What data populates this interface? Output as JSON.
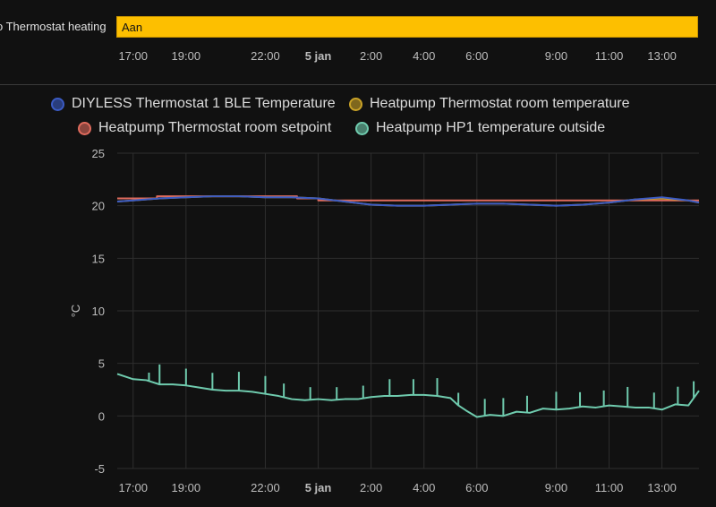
{
  "timeline": {
    "entity_label": "o Thermostat heating",
    "state_label": "Aan",
    "state_color": "#fdbf00",
    "x_ticks": [
      "17:00",
      "19:00",
      "22:00",
      "5 jan",
      "2:00",
      "4:00",
      "6:00",
      "9:00",
      "11:00",
      "13:00"
    ]
  },
  "legend": [
    {
      "name": "DIYLESS Thermostat 1 BLE Temperature",
      "color": "#3b5bc4"
    },
    {
      "name": "Heatpump Thermostat room temperature",
      "color": "#c9a227"
    },
    {
      "name": "Heatpump Thermostat room setpoint",
      "color": "#e06b5d"
    },
    {
      "name": "Heatpump HP1 temperature outside",
      "color": "#6fcbae"
    }
  ],
  "chart_data": {
    "type": "line",
    "ylabel": "°C",
    "ylim": [
      -5,
      25
    ],
    "yticks": [
      25,
      20,
      15,
      10,
      5,
      0,
      -5
    ],
    "x_range_hours": [
      16.4,
      38.4
    ],
    "x_ticks": [
      {
        "label": "17:00",
        "hour": 17,
        "bold": false
      },
      {
        "label": "19:00",
        "hour": 19,
        "bold": false
      },
      {
        "label": "22:00",
        "hour": 22,
        "bold": false
      },
      {
        "label": "5 jan",
        "hour": 24,
        "bold": true
      },
      {
        "label": "2:00",
        "hour": 26,
        "bold": false
      },
      {
        "label": "4:00",
        "hour": 28,
        "bold": false
      },
      {
        "label": "6:00",
        "hour": 30,
        "bold": false
      },
      {
        "label": "9:00",
        "hour": 33,
        "bold": false
      },
      {
        "label": "11:00",
        "hour": 35,
        "bold": false
      },
      {
        "label": "13:00",
        "hour": 37,
        "bold": false
      }
    ],
    "grid": true,
    "legend_position": "top",
    "series": [
      {
        "name": "Heatpump Thermostat room setpoint",
        "color": "#e06b5d",
        "step": true,
        "x": [
          16.4,
          17.9,
          23.2,
          24.0,
          32.1,
          38.4
        ],
        "y": [
          20.7,
          20.9,
          20.7,
          20.5,
          20.5,
          20.5
        ]
      },
      {
        "name": "Heatpump Thermostat room temperature",
        "color": "#c9a227",
        "step": false,
        "x": [
          16.4,
          17.0,
          18.0,
          19.0,
          20.0,
          21.0,
          22.0,
          23.0,
          24.0,
          25.0,
          26.0,
          27.0,
          28.0,
          29.0,
          30.0,
          31.0,
          32.0,
          33.0,
          34.0,
          35.0,
          36.0,
          37.0,
          38.0,
          38.4
        ],
        "y": [
          20.4,
          20.5,
          20.7,
          20.8,
          20.9,
          20.9,
          20.8,
          20.8,
          20.7,
          20.4,
          20.1,
          20.0,
          20.0,
          20.1,
          20.2,
          20.2,
          20.1,
          20.0,
          20.1,
          20.3,
          20.6,
          20.7,
          20.5,
          20.3
        ]
      },
      {
        "name": "DIYLESS Thermostat 1 BLE Temperature",
        "color": "#3b5bc4",
        "step": false,
        "x": [
          16.4,
          17.0,
          18.0,
          19.0,
          20.0,
          21.0,
          22.0,
          23.0,
          24.0,
          25.0,
          26.0,
          27.0,
          28.0,
          29.0,
          30.0,
          31.0,
          32.0,
          33.0,
          34.0,
          35.0,
          36.0,
          37.0,
          38.0,
          38.4
        ],
        "y": [
          20.4,
          20.5,
          20.7,
          20.8,
          20.9,
          20.9,
          20.8,
          20.8,
          20.7,
          20.4,
          20.1,
          20.0,
          20.0,
          20.1,
          20.2,
          20.2,
          20.1,
          20.0,
          20.1,
          20.3,
          20.6,
          20.8,
          20.5,
          20.3
        ]
      },
      {
        "name": "Heatpump HP1 temperature outside",
        "color": "#6fcbae",
        "step": false,
        "x": [
          16.4,
          17.0,
          17.5,
          18.0,
          18.5,
          19.0,
          19.5,
          20.0,
          20.5,
          21.0,
          21.5,
          22.0,
          22.5,
          23.0,
          23.5,
          24.0,
          24.5,
          25.0,
          25.5,
          26.0,
          26.5,
          27.0,
          27.5,
          28.0,
          28.5,
          29.0,
          29.3,
          29.6,
          30.0,
          30.5,
          31.0,
          31.5,
          32.0,
          32.5,
          33.0,
          33.5,
          34.0,
          34.5,
          35.0,
          35.5,
          36.0,
          36.5,
          37.0,
          37.5,
          38.0,
          38.4
        ],
        "y": [
          4.0,
          3.5,
          3.4,
          3.0,
          3.0,
          2.9,
          2.7,
          2.5,
          2.4,
          2.4,
          2.3,
          2.1,
          1.9,
          1.6,
          1.5,
          1.6,
          1.5,
          1.6,
          1.6,
          1.8,
          1.9,
          1.9,
          2.0,
          2.0,
          1.9,
          1.7,
          1.0,
          0.5,
          -0.1,
          0.1,
          0.0,
          0.4,
          0.3,
          0.7,
          0.6,
          0.7,
          0.9,
          0.8,
          1.0,
          0.9,
          0.8,
          0.8,
          0.6,
          1.1,
          1.0,
          2.4
        ]
      }
    ],
    "spikes": {
      "series": "Heatpump HP1 temperature outside",
      "x": [
        17.6,
        18.0,
        19.0,
        20.0,
        21.0,
        22.0,
        22.7,
        23.7,
        24.7,
        25.7,
        26.7,
        27.6,
        28.5,
        29.3,
        30.3,
        31.0,
        31.9,
        33.0,
        33.9,
        34.8,
        35.7,
        36.7,
        37.6,
        38.2
      ],
      "height": [
        0.8,
        1.9,
        1.6,
        1.6,
        1.8,
        1.7,
        1.3,
        1.2,
        1.2,
        1.2,
        1.6,
        1.5,
        1.7,
        1.2,
        1.6,
        1.7,
        1.6,
        1.7,
        1.4,
        1.5,
        1.9,
        1.5,
        1.7,
        1.6
      ]
    }
  }
}
